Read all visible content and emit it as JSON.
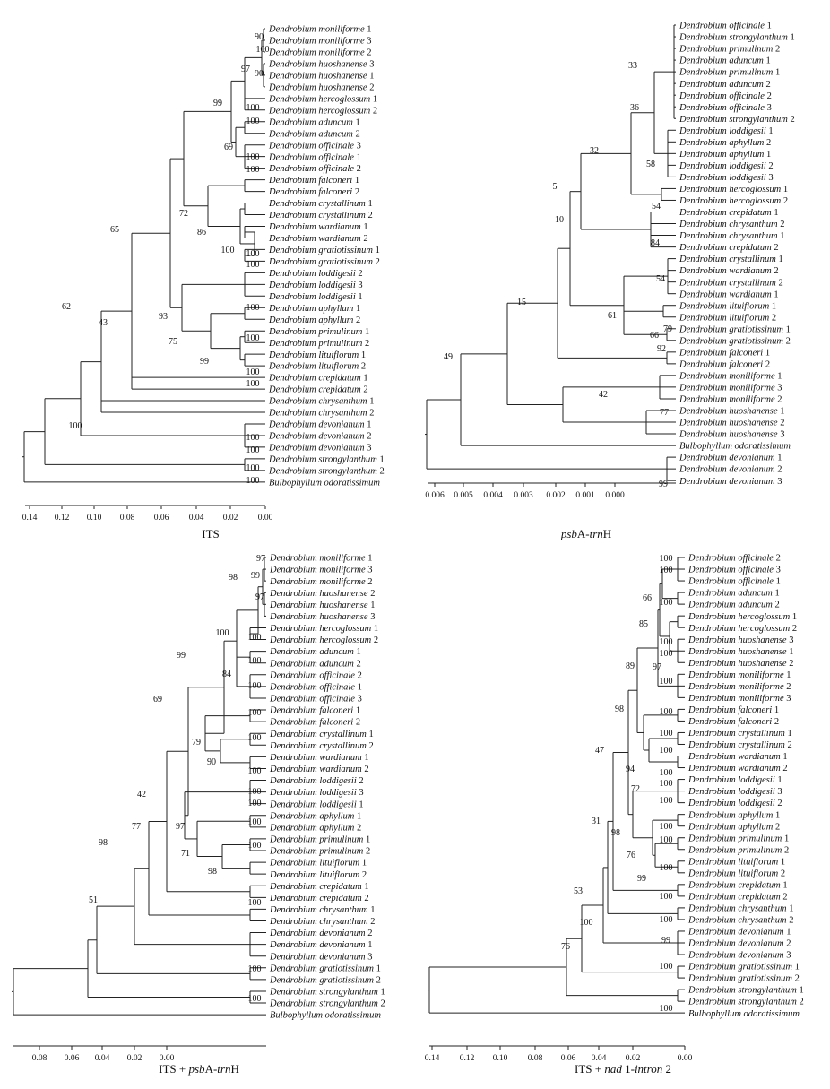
{
  "panels": [
    {
      "id": "its",
      "caption": [
        "ITS"
      ],
      "axis_ticks": [
        "0.14",
        "0.12",
        "0.10",
        "0.08",
        "0.06",
        "0.04",
        "0.02",
        "0.00"
      ],
      "leaves": [
        [
          "Dendrobium moniliforme",
          " 1"
        ],
        [
          "Dendrobium moniliforme",
          " 3"
        ],
        [
          "Dendrobium moniliforme",
          " 2"
        ],
        [
          "Dendrobium huoshanense",
          " 3"
        ],
        [
          "Dendrobium huoshanense",
          " 1"
        ],
        [
          "Dendrobium huoshanense",
          " 2"
        ],
        [
          "Dendrobium hercoglossum",
          " 1"
        ],
        [
          "Dendrobium hercoglossum",
          " 2"
        ],
        [
          "Dendrobium aduncum",
          " 1"
        ],
        [
          "Dendrobium aduncum",
          " 2"
        ],
        [
          "Dendrobium officinale",
          " 3"
        ],
        [
          "Dendrobium officinale",
          " 1"
        ],
        [
          "Dendrobium officinale",
          " 2"
        ],
        [
          "Dendrobium falconeri",
          " 1"
        ],
        [
          "Dendrobium falconeri",
          " 2"
        ],
        [
          "Dendrobium crystallinum",
          " 1"
        ],
        [
          "Dendrobium crystallinum",
          " 2"
        ],
        [
          "Dendrobium wardianum",
          " 1"
        ],
        [
          "Dendrobium wardianum",
          " 2"
        ],
        [
          "Dendrobium gratiotissinum",
          " 1"
        ],
        [
          "Dendrobium gratiotissinum",
          " 2"
        ],
        [
          "Dendrobium loddigesii",
          " 2"
        ],
        [
          "Dendrobium loddigesii",
          " 3"
        ],
        [
          "Dendrobium loddigesii",
          " 1"
        ],
        [
          "Dendrobium aphyllum",
          " 1"
        ],
        [
          "Dendrobium aphyllum",
          " 2"
        ],
        [
          "Dendrobium primulinum",
          " 1"
        ],
        [
          "Dendrobium primulinum",
          " 2"
        ],
        [
          "Dendrobium lituiflorum",
          " 1"
        ],
        [
          "Dendrobium lituiflorum",
          " 2"
        ],
        [
          "Dendrobium crepidatum",
          " 1"
        ],
        [
          "Dendrobium crepidatum",
          " 2"
        ],
        [
          "Dendrobium chrysanthum",
          " 1"
        ],
        [
          "Dendrobium chrysanthum",
          " 2"
        ],
        [
          "Dendrobium devonianum",
          " 1"
        ],
        [
          "Dendrobium devonianum",
          " 2"
        ],
        [
          "Dendrobium devonianum",
          " 3"
        ],
        [
          "Dendrobium strongylanthum",
          " 1"
        ],
        [
          "Dendrobium strongylanthum",
          " 2"
        ],
        [
          "Bulbophyllum odoratissimum",
          ""
        ]
      ],
      "bootstraps": [
        "90",
        "100",
        "90",
        "97",
        "100",
        "99",
        "100",
        "69",
        "100",
        "100",
        "100",
        "72",
        "86",
        "100",
        "100",
        "65",
        "93",
        "75",
        "100",
        "99",
        "100",
        "43",
        "62",
        "100",
        "100",
        "100",
        "100",
        "100",
        "100",
        "100"
      ]
    },
    {
      "id": "psba",
      "caption": [
        "psb",
        "A-",
        "trn",
        "H"
      ],
      "axis_ticks": [
        "0.006",
        "0.005",
        "0.004",
        "0.003",
        "0.002",
        "0.001",
        "0.000"
      ],
      "leaves": [
        [
          "Dendrobium officinale",
          " 1"
        ],
        [
          "Dendrobium strongylanthum",
          " 1"
        ],
        [
          "Dendrobium primulinum",
          " 2"
        ],
        [
          "Dendrobium aduncum",
          " 1"
        ],
        [
          "Dendrobium primulinum",
          " 1"
        ],
        [
          "Dendrobium aduncum",
          " 2"
        ],
        [
          "Dendrobium officinale",
          " 2"
        ],
        [
          "Dendrobium officinale",
          " 3"
        ],
        [
          "Dendrobium strongylanthum",
          " 2"
        ],
        [
          "Dendrobium loddigesii",
          " 1"
        ],
        [
          "Dendrobium aphyllum",
          " 2"
        ],
        [
          "Dendrobium aphyllum",
          " 1"
        ],
        [
          "Dendrobium loddigesii",
          " 2"
        ],
        [
          "Dendrobium loddigesii",
          " 3"
        ],
        [
          "Dendrobium hercoglossum",
          " 1"
        ],
        [
          "Dendrobium hercoglossum",
          " 2"
        ],
        [
          "Dendrobium crepidatum",
          " 1"
        ],
        [
          "Dendrobium chrysanthum",
          " 2"
        ],
        [
          "Dendrobium chrysanthum",
          " 1"
        ],
        [
          "Dendrobium crepidatum",
          " 2"
        ],
        [
          "Dendrobium crystallinum",
          " 1"
        ],
        [
          "Dendrobium wardianum",
          " 2"
        ],
        [
          "Dendrobium crystallinum",
          " 2"
        ],
        [
          "Dendrobium wardianum",
          " 1"
        ],
        [
          "Dendrobium lituiflorum",
          " 1"
        ],
        [
          "Dendrobium lituiflorum",
          " 2"
        ],
        [
          "Dendrobium gratiotissinum",
          " 1"
        ],
        [
          "Dendrobium gratiotissinum",
          " 2"
        ],
        [
          "Dendrobium falconeri",
          " 1"
        ],
        [
          "Dendrobium falconeri",
          " 2"
        ],
        [
          "Dendrobium moniliforme",
          " 1"
        ],
        [
          "Dendrobium moniliforme",
          " 3"
        ],
        [
          "Dendrobium moniliforme",
          " 2"
        ],
        [
          "Dendrobium huoshanense",
          " 1"
        ],
        [
          "Dendrobium huoshanense",
          " 2"
        ],
        [
          "Dendrobium huoshanense",
          " 3"
        ],
        [
          "Bulbophyllum odoratissimum",
          ""
        ],
        [
          "Dendrobium devonianum",
          " 1"
        ],
        [
          "Dendrobium devonianum",
          " 2"
        ],
        [
          "Dendrobium devonianum",
          " 3"
        ]
      ],
      "bootstraps": [
        "33",
        "36",
        "58",
        "32",
        "54",
        "5",
        "84",
        "10",
        "54",
        "61",
        "66",
        "15",
        "92",
        "79",
        "49",
        "77",
        "42",
        "99"
      ]
    },
    {
      "id": "its_psba",
      "caption": [
        "ITS + ",
        "psb",
        "A-",
        "trn",
        "H"
      ],
      "axis_ticks": [
        "0.08",
        "0.06",
        "0.04",
        "0.02",
        "0.00"
      ],
      "leaves": [
        [
          "Dendrobium moniliforme",
          " 1"
        ],
        [
          "Dendrobium moniliforme",
          " 3"
        ],
        [
          "Dendrobium moniliforme",
          " 2"
        ],
        [
          "Dendrobium huoshanense",
          " 2"
        ],
        [
          "Dendrobium huoshanense",
          " 1"
        ],
        [
          "Dendrobium huoshanense",
          " 3"
        ],
        [
          "Dendrobium hercoglossum",
          " 1"
        ],
        [
          "Dendrobium hercoglossum",
          " 2"
        ],
        [
          "Dendrobium aduncum",
          " 1"
        ],
        [
          "Dendrobium aduncum",
          " 2"
        ],
        [
          "Dendrobium officinale",
          " 2"
        ],
        [
          "Dendrobium officinale",
          " 1"
        ],
        [
          "Dendrobium officinale",
          " 3"
        ],
        [
          "Dendrobium falconeri",
          " 1"
        ],
        [
          "Dendrobium falconeri",
          " 2"
        ],
        [
          "Dendrobium crystallinum",
          " 1"
        ],
        [
          "Dendrobium crystallinum",
          " 2"
        ],
        [
          "Dendrobium wardianum",
          " 1"
        ],
        [
          "Dendrobium wardianum",
          " 2"
        ],
        [
          "Dendrobium loddigesii",
          " 2"
        ],
        [
          "Dendrobium loddigesii",
          " 3"
        ],
        [
          "Dendrobium loddigesii",
          " 1"
        ],
        [
          "Dendrobium aphyllum",
          " 1"
        ],
        [
          "Dendrobium aphyllum",
          " 2"
        ],
        [
          "Dendrobium primulinum",
          " 1"
        ],
        [
          "Dendrobium primulinum",
          " 2"
        ],
        [
          "Dendrobium lituiflorum",
          " 1"
        ],
        [
          "Dendrobium lituiflorum",
          " 2"
        ],
        [
          "Dendrobium crepidatum",
          " 1"
        ],
        [
          "Dendrobium crepidatum",
          " 2"
        ],
        [
          "Dendrobium chrysanthum",
          " 1"
        ],
        [
          "Dendrobium chrysanthum",
          " 2"
        ],
        [
          "Dendrobium devonianum",
          " 2"
        ],
        [
          "Dendrobium devonianum",
          " 1"
        ],
        [
          "Dendrobium devonianum",
          " 3"
        ],
        [
          "Dendrobium gratiotissinum",
          " 1"
        ],
        [
          "Dendrobium gratiotissinum",
          " 2"
        ],
        [
          "Dendrobium strongylanthum",
          " 1"
        ],
        [
          "Dendrobium strongylanthum",
          " 2"
        ],
        [
          "Bulbophyllum odoratissimum",
          ""
        ]
      ],
      "bootstraps": [
        "97",
        "99",
        "97",
        "98",
        "100",
        "100",
        "84",
        "100",
        "99",
        "100",
        "100",
        "79",
        "100",
        "90",
        "100",
        "69",
        "100",
        "97",
        "100",
        "71",
        "100",
        "98",
        "100",
        "100",
        "42",
        "77",
        "98",
        "100",
        "51",
        "100"
      ]
    },
    {
      "id": "its_nad",
      "caption": [
        "ITS + ",
        "nad",
        " 1-",
        "intron",
        " 2"
      ],
      "axis_ticks": [
        "0.14",
        "0.12",
        "0.10",
        "0.08",
        "0.06",
        "0.04",
        "0.02",
        "0.00"
      ],
      "leaves": [
        [
          "Dendrobium officinale",
          " 2"
        ],
        [
          "Dendrobium officinale",
          " 3"
        ],
        [
          "Dendrobium officinale",
          " 1"
        ],
        [
          "Dendrobium aduncum",
          " 1"
        ],
        [
          "Dendrobium aduncum",
          " 2"
        ],
        [
          "Dendrobium hercoglossum",
          " 1"
        ],
        [
          "Dendrobium hercoglossum",
          " 2"
        ],
        [
          "Dendrobium huoshanense",
          " 3"
        ],
        [
          "Dendrobium huoshanense",
          " 1"
        ],
        [
          "Dendrobium huoshanense",
          " 2"
        ],
        [
          "Dendrobium moniliforme",
          " 1"
        ],
        [
          "Dendrobium moniliforme",
          " 2"
        ],
        [
          "Dendrobium moniliforme",
          " 3"
        ],
        [
          "Dendrobium falconeri",
          " 1"
        ],
        [
          "Dendrobium falconeri",
          " 2"
        ],
        [
          "Dendrobium crystallinum",
          " 1"
        ],
        [
          "Dendrobium crystallinum",
          " 2"
        ],
        [
          "Dendrobium wardianum",
          " 1"
        ],
        [
          "Dendrobium wardianum",
          " 2"
        ],
        [
          "Dendrobium loddigesii",
          " 1"
        ],
        [
          "Dendrobium loddigesii",
          " 3"
        ],
        [
          "Dendrobium loddigesii",
          " 2"
        ],
        [
          "Dendrobium aphyllum",
          " 1"
        ],
        [
          "Dendrobium aphyllum",
          " 2"
        ],
        [
          "Dendrobium primulinum",
          " 1"
        ],
        [
          "Dendrobium primulinum",
          " 2"
        ],
        [
          "Dendrobium lituiflorum",
          " 1"
        ],
        [
          "Dendrobium lituiflorum",
          " 2"
        ],
        [
          "Dendrobium crepidatum",
          " 1"
        ],
        [
          "Dendrobium crepidatum",
          " 2"
        ],
        [
          "Dendrobium chrysanthum",
          " 1"
        ],
        [
          "Dendrobium chrysanthum",
          " 2"
        ],
        [
          "Dendrobium devonianum",
          " 1"
        ],
        [
          "Dendrobium devonianum",
          " 2"
        ],
        [
          "Dendrobium devonianum",
          " 3"
        ],
        [
          "Dendrobium gratiotissinum",
          " 1"
        ],
        [
          "Dendrobium gratiotissinum",
          " 2"
        ],
        [
          "Dendrobium strongylanthum",
          " 1"
        ],
        [
          "Dendrobium strongylanthum",
          " 2"
        ],
        [
          "Bulbophyllum odoratissimum",
          ""
        ]
      ],
      "bootstraps": [
        "100",
        "100",
        "66",
        "100",
        "85",
        "100",
        "100",
        "97",
        "100",
        "89",
        "100",
        "98",
        "100",
        "100",
        "94",
        "72",
        "100",
        "47",
        "100",
        "100",
        "98",
        "76",
        "100",
        "100",
        "99",
        "31",
        "100",
        "100",
        "53",
        "100",
        "99",
        "100",
        "76",
        "100",
        "100"
      ]
    }
  ]
}
